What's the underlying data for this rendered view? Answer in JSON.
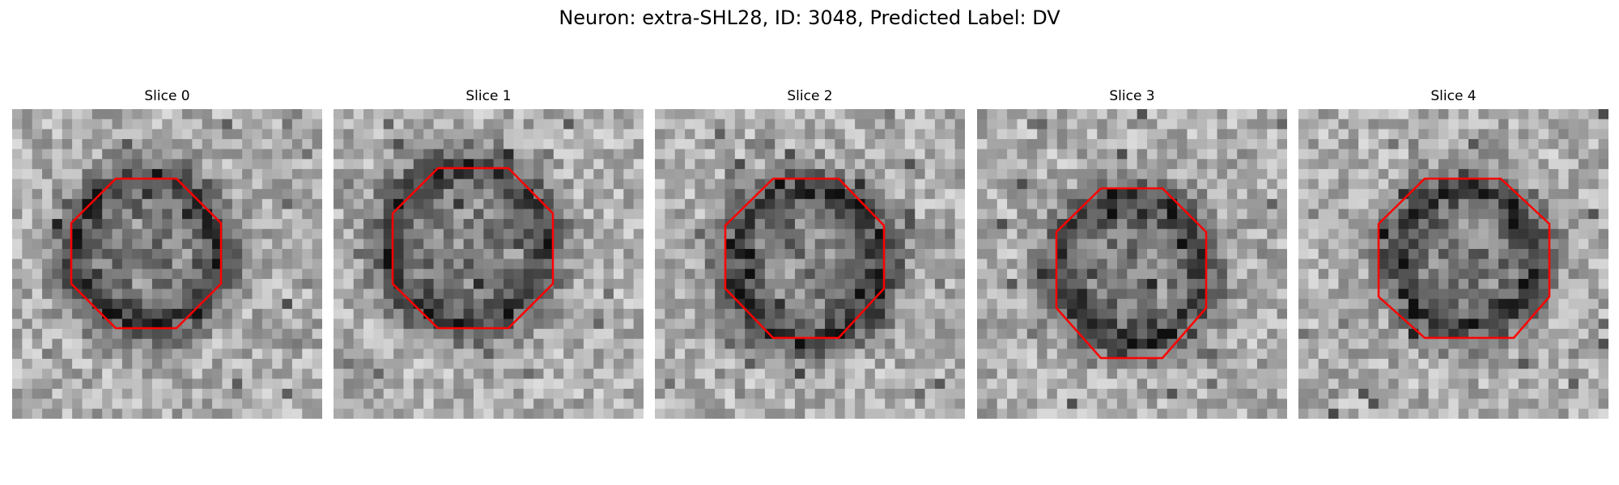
{
  "figure": {
    "title": "Neuron: extra-SHL28, ID: 3048, Predicted Label: DV"
  },
  "colormap": "gray",
  "roi_color": "#ff0000",
  "panels": [
    {
      "title": "Slice 0"
    },
    {
      "title": "Slice 1"
    },
    {
      "title": "Slice 2"
    },
    {
      "title": "Slice 3"
    },
    {
      "title": "Slice 4"
    }
  ]
}
